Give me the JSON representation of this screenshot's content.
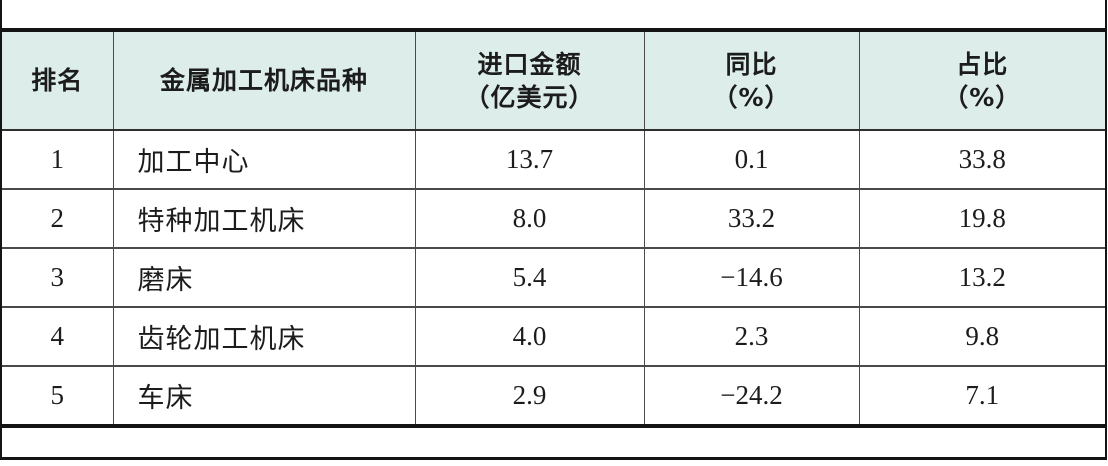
{
  "colors": {
    "header_bg": "#dcedea",
    "border_dark": "#141414",
    "border_thin": "#4a4a4a",
    "text": "#1c1c1c"
  },
  "table": {
    "columns": [
      {
        "label": "排名",
        "unit": ""
      },
      {
        "label": "金属加工机床品种",
        "unit": ""
      },
      {
        "label": "进口金额",
        "unit": "（亿美元）"
      },
      {
        "label": "同比",
        "unit": "（%）"
      },
      {
        "label": "占比",
        "unit": "（%）"
      }
    ],
    "rows": [
      {
        "rank": "1",
        "variety": "加工中心",
        "amount": "13.7",
        "yoy": "0.1",
        "share": "33.8"
      },
      {
        "rank": "2",
        "variety": "特种加工机床",
        "amount": "8.0",
        "yoy": "33.2",
        "share": "19.8"
      },
      {
        "rank": "3",
        "variety": "磨床",
        "amount": "5.4",
        "yoy": "−14.6",
        "share": "13.2"
      },
      {
        "rank": "4",
        "variety": "齿轮加工机床",
        "amount": "4.0",
        "yoy": "2.3",
        "share": "9.8"
      },
      {
        "rank": "5",
        "variety": "车床",
        "amount": "2.9",
        "yoy": "−24.2",
        "share": "7.1"
      }
    ]
  }
}
